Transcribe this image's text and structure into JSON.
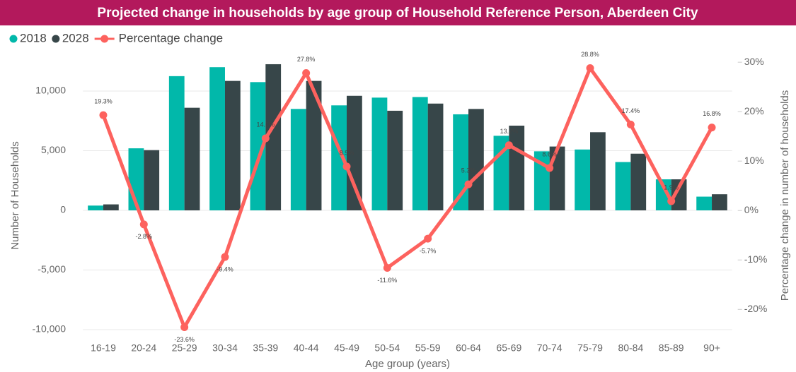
{
  "chart_data": {
    "type": "bar_line",
    "title": "Projected change in households by age group of Household Reference Person, Aberdeen City",
    "x_label": "Age group (years)",
    "y_label": "Number of Households",
    "y2_label": "Percentage change in number of households",
    "categories": [
      "16-19",
      "20-24",
      "25-29",
      "30-34",
      "35-39",
      "40-44",
      "45-49",
      "50-54",
      "55-59",
      "60-64",
      "65-69",
      "70-74",
      "75-79",
      "80-84",
      "85-89",
      "90+"
    ],
    "series": [
      {
        "name": "2018",
        "type": "bar",
        "color": "#01b8aa",
        "values": [
          400,
          5200,
          11250,
          12000,
          10750,
          8500,
          8800,
          9450,
          9500,
          8050,
          6250,
          4950,
          5100,
          4050,
          2600,
          1150
        ]
      },
      {
        "name": "2028",
        "type": "bar",
        "color": "#374649",
        "values": [
          500,
          5050,
          8600,
          10850,
          12250,
          10850,
          9600,
          8350,
          8950,
          8500,
          7100,
          5350,
          6550,
          4750,
          2600,
          1350
        ]
      },
      {
        "name": "Percentage change",
        "type": "line",
        "axis": "y2",
        "color": "#fd625e",
        "values": [
          19.3,
          -2.8,
          -23.6,
          -9.4,
          14.6,
          27.8,
          8.9,
          -11.6,
          -5.7,
          5.3,
          13.2,
          8.6,
          28.8,
          17.4,
          1.9,
          16.8
        ],
        "value_labels": [
          "19.3%",
          "-2.8%",
          "-23.6%",
          "-9.4%",
          "14.6%",
          "27.8%",
          "8.9%",
          "-11.6%",
          "-5.7%",
          "5.3%",
          "13.2%",
          "8.6%",
          "28.8%",
          "17.4%",
          "1.9%",
          "16.8%"
        ]
      }
    ],
    "ylim": [
      -10000,
      12500
    ],
    "yticks": [
      {
        "value": -10000,
        "label": "-10,000"
      },
      {
        "value": -5000,
        "label": "-5,000"
      },
      0,
      {
        "value": 5000,
        "label": "5,000"
      },
      {
        "value": 10000,
        "label": "10,000"
      }
    ],
    "y2lim": [
      -24.1,
      30.2
    ],
    "y2ticks": [
      {
        "value": -20,
        "label": "-20%"
      },
      {
        "value": -10,
        "label": "-10%"
      },
      {
        "value": 0,
        "label": "0%"
      },
      {
        "value": 10,
        "label": "10%"
      },
      {
        "value": 20,
        "label": "20%"
      },
      {
        "value": 30,
        "label": "30%"
      }
    ],
    "grid": true,
    "legend": "top-left"
  }
}
